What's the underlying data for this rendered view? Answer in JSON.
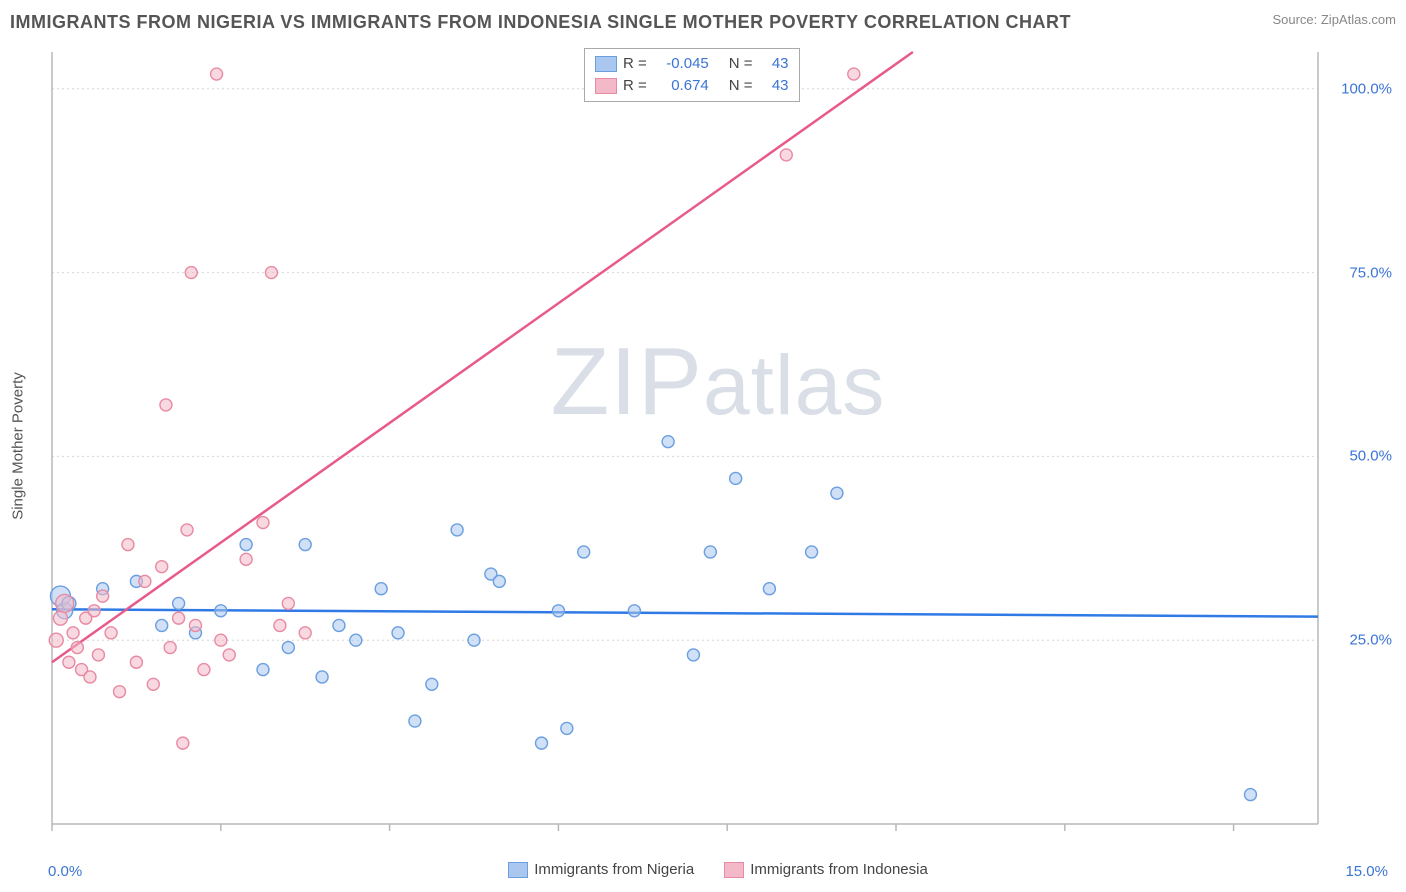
{
  "header": {
    "title": "IMMIGRANTS FROM NIGERIA VS IMMIGRANTS FROM INDONESIA SINGLE MOTHER POVERTY CORRELATION CHART",
    "source_prefix": "Source: ",
    "source_name": "ZipAtlas.com"
  },
  "chart": {
    "ylabel": "Single Mother Poverty",
    "watermark_a": "ZIP",
    "watermark_b": "atlas",
    "xlim": [
      0,
      15
    ],
    "ylim": [
      0,
      105
    ],
    "xtick_step": 2,
    "xticks_label_left": "0.0%",
    "xticks_label_right": "15.0%",
    "yticks": [
      {
        "v": 25,
        "label": "25.0%"
      },
      {
        "v": 50,
        "label": "50.0%"
      },
      {
        "v": 75,
        "label": "75.0%"
      },
      {
        "v": 100,
        "label": "100.0%"
      }
    ],
    "grid_color": "#d6d6d6",
    "axis_color": "#b8b8b8",
    "tick_label_color": "#3b74d4",
    "xlabel_color": "#3b74d4",
    "background": "#ffffff",
    "series": [
      {
        "name": "Immigrants from Nigeria",
        "label": "Immigrants from Nigeria",
        "color_fill": "#a9c7ef",
        "color_stroke": "#6b9fe0",
        "line_color": "#2f7ae5",
        "r_val": "-0.045",
        "n_val": "43",
        "trend": {
          "x1": 0,
          "y1": 29.2,
          "x2": 15,
          "y2": 28.2
        },
        "points": [
          {
            "x": 0.1,
            "y": 31,
            "r": 10
          },
          {
            "x": 0.15,
            "y": 29,
            "r": 8
          },
          {
            "x": 0.2,
            "y": 30,
            "r": 7
          },
          {
            "x": 0.6,
            "y": 32,
            "r": 6
          },
          {
            "x": 1.0,
            "y": 33,
            "r": 6
          },
          {
            "x": 1.3,
            "y": 27,
            "r": 6
          },
          {
            "x": 1.5,
            "y": 30,
            "r": 6
          },
          {
            "x": 1.7,
            "y": 26,
            "r": 6
          },
          {
            "x": 2.0,
            "y": 29,
            "r": 6
          },
          {
            "x": 2.3,
            "y": 38,
            "r": 6
          },
          {
            "x": 2.5,
            "y": 21,
            "r": 6
          },
          {
            "x": 2.8,
            "y": 24,
            "r": 6
          },
          {
            "x": 3.0,
            "y": 38,
            "r": 6
          },
          {
            "x": 3.2,
            "y": 20,
            "r": 6
          },
          {
            "x": 3.4,
            "y": 27,
            "r": 6
          },
          {
            "x": 3.6,
            "y": 25,
            "r": 6
          },
          {
            "x": 3.9,
            "y": 32,
            "r": 6
          },
          {
            "x": 4.1,
            "y": 26,
            "r": 6
          },
          {
            "x": 4.3,
            "y": 14,
            "r": 6
          },
          {
            "x": 4.5,
            "y": 19,
            "r": 6
          },
          {
            "x": 4.8,
            "y": 40,
            "r": 6
          },
          {
            "x": 5.0,
            "y": 25,
            "r": 6
          },
          {
            "x": 5.2,
            "y": 34,
            "r": 6
          },
          {
            "x": 5.3,
            "y": 33,
            "r": 6
          },
          {
            "x": 5.8,
            "y": 11,
            "r": 6
          },
          {
            "x": 6.0,
            "y": 29,
            "r": 6
          },
          {
            "x": 6.1,
            "y": 13,
            "r": 6
          },
          {
            "x": 6.3,
            "y": 37,
            "r": 6
          },
          {
            "x": 6.9,
            "y": 29,
            "r": 6
          },
          {
            "x": 7.3,
            "y": 52,
            "r": 6
          },
          {
            "x": 7.6,
            "y": 23,
            "r": 6
          },
          {
            "x": 7.8,
            "y": 37,
            "r": 6
          },
          {
            "x": 8.1,
            "y": 47,
            "r": 6
          },
          {
            "x": 8.5,
            "y": 32,
            "r": 6
          },
          {
            "x": 9.0,
            "y": 37,
            "r": 6
          },
          {
            "x": 9.3,
            "y": 45,
            "r": 6
          },
          {
            "x": 14.2,
            "y": 4,
            "r": 6
          }
        ]
      },
      {
        "name": "Immigrants from Indonesia",
        "label": "Immigrants from Indonesia",
        "color_fill": "#f4b9c8",
        "color_stroke": "#e88aa3",
        "line_color": "#e85a8b",
        "r_val": "0.674",
        "n_val": "43",
        "trend": {
          "x1": 0,
          "y1": 22,
          "x2": 10.2,
          "y2": 105
        },
        "points": [
          {
            "x": 0.05,
            "y": 25,
            "r": 7
          },
          {
            "x": 0.1,
            "y": 28,
            "r": 7
          },
          {
            "x": 0.15,
            "y": 30,
            "r": 9
          },
          {
            "x": 0.2,
            "y": 22,
            "r": 6
          },
          {
            "x": 0.25,
            "y": 26,
            "r": 6
          },
          {
            "x": 0.3,
            "y": 24,
            "r": 6
          },
          {
            "x": 0.35,
            "y": 21,
            "r": 6
          },
          {
            "x": 0.4,
            "y": 28,
            "r": 6
          },
          {
            "x": 0.45,
            "y": 20,
            "r": 6
          },
          {
            "x": 0.5,
            "y": 29,
            "r": 6
          },
          {
            "x": 0.55,
            "y": 23,
            "r": 6
          },
          {
            "x": 0.6,
            "y": 31,
            "r": 6
          },
          {
            "x": 0.7,
            "y": 26,
            "r": 6
          },
          {
            "x": 0.8,
            "y": 18,
            "r": 6
          },
          {
            "x": 0.9,
            "y": 38,
            "r": 6
          },
          {
            "x": 1.0,
            "y": 22,
            "r": 6
          },
          {
            "x": 1.1,
            "y": 33,
            "r": 6
          },
          {
            "x": 1.2,
            "y": 19,
            "r": 6
          },
          {
            "x": 1.3,
            "y": 35,
            "r": 6
          },
          {
            "x": 1.35,
            "y": 57,
            "r": 6
          },
          {
            "x": 1.4,
            "y": 24,
            "r": 6
          },
          {
            "x": 1.5,
            "y": 28,
            "r": 6
          },
          {
            "x": 1.55,
            "y": 11,
            "r": 6
          },
          {
            "x": 1.6,
            "y": 40,
            "r": 6
          },
          {
            "x": 1.65,
            "y": 75,
            "r": 6
          },
          {
            "x": 1.7,
            "y": 27,
            "r": 6
          },
          {
            "x": 1.8,
            "y": 21,
            "r": 6
          },
          {
            "x": 1.95,
            "y": 102,
            "r": 6
          },
          {
            "x": 2.0,
            "y": 25,
            "r": 6
          },
          {
            "x": 2.1,
            "y": 23,
            "r": 6
          },
          {
            "x": 2.3,
            "y": 36,
            "r": 6
          },
          {
            "x": 2.5,
            "y": 41,
            "r": 6
          },
          {
            "x": 2.6,
            "y": 75,
            "r": 6
          },
          {
            "x": 2.7,
            "y": 27,
            "r": 6
          },
          {
            "x": 2.8,
            "y": 30,
            "r": 6
          },
          {
            "x": 3.0,
            "y": 26,
            "r": 6
          },
          {
            "x": 8.7,
            "y": 91,
            "r": 6
          },
          {
            "x": 9.5,
            "y": 102,
            "r": 6
          }
        ]
      }
    ],
    "legend_top": {
      "r_label": "R =",
      "n_label": "N ="
    }
  }
}
